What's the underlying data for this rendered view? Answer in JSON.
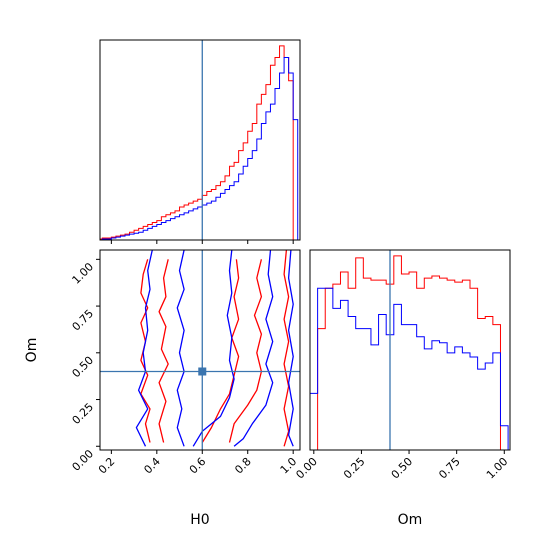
{
  "chart_data": [
    {
      "type": "histogram",
      "panel": "H0-marginal",
      "truth": 0.6,
      "xlim": [
        0.15,
        1.03
      ],
      "bin_edges": [
        0.04,
        0.06,
        0.08,
        0.1,
        0.12,
        0.14,
        0.16,
        0.18,
        0.2,
        0.22,
        0.24,
        0.26,
        0.28,
        0.3,
        0.32,
        0.34,
        0.36,
        0.38,
        0.4,
        0.42,
        0.44,
        0.46,
        0.48,
        0.5,
        0.52,
        0.54,
        0.56,
        0.58,
        0.6,
        0.62,
        0.64,
        0.66,
        0.68,
        0.7,
        0.72,
        0.74,
        0.76,
        0.78,
        0.8,
        0.82,
        0.84,
        0.86,
        0.88,
        0.9,
        0.92,
        0.94,
        0.96,
        0.98,
        1.0,
        1.02
      ],
      "series": [
        {
          "color": "#ff0000",
          "values": [
            0,
            0,
            0,
            0,
            0,
            0.5,
            1,
            1,
            1.5,
            2,
            2.5,
            3,
            4,
            5,
            6,
            7,
            8,
            9,
            10,
            12,
            13,
            14,
            15,
            17,
            18,
            19,
            20,
            21,
            23,
            25,
            26,
            28,
            30,
            33,
            38,
            40,
            46,
            50,
            56,
            60,
            70,
            75,
            80,
            90,
            94,
            100,
            94,
            82,
            0
          ]
        },
        {
          "color": "#0000ff",
          "values": [
            0,
            0,
            0,
            0,
            0,
            0,
            0.5,
            0.5,
            1,
            1.5,
            2,
            2.5,
            3,
            3.5,
            4,
            5,
            6,
            7,
            8,
            9,
            10,
            11,
            12,
            13,
            14,
            15,
            16,
            17,
            18,
            19,
            20,
            22,
            24,
            26,
            28,
            30,
            34,
            38,
            42,
            46,
            52,
            60,
            66,
            70,
            78,
            86,
            94,
            86,
            62
          ]
        }
      ]
    },
    {
      "type": "contour",
      "panel": "H0-Om-joint",
      "xlabel": "H0",
      "ylabel": "Om",
      "xlim": [
        0.15,
        1.03
      ],
      "ylim": [
        -0.02,
        1.05
      ],
      "xticks": [
        "0.2",
        "0.4",
        "0.6",
        "0.8",
        "1.0"
      ],
      "yticks": [
        "0.00",
        "0.25",
        "0.50",
        "0.75",
        "1.00"
      ],
      "truth": [
        0.6,
        0.4
      ],
      "series": [
        {
          "color": "#ff0000",
          "contours": [
            [
              [
                0.36,
                1.0
              ],
              [
                0.34,
                0.92
              ],
              [
                0.33,
                0.82
              ],
              [
                0.36,
                0.74
              ],
              [
                0.33,
                0.66
              ],
              [
                0.35,
                0.56
              ],
              [
                0.33,
                0.46
              ],
              [
                0.36,
                0.38
              ],
              [
                0.33,
                0.28
              ],
              [
                0.37,
                0.2
              ],
              [
                0.35,
                0.12
              ],
              [
                0.37,
                0.02
              ]
            ],
            [
              [
                0.45,
                1.0
              ],
              [
                0.43,
                0.9
              ],
              [
                0.44,
                0.8
              ],
              [
                0.41,
                0.72
              ],
              [
                0.44,
                0.64
              ],
              [
                0.42,
                0.52
              ],
              [
                0.45,
                0.44
              ],
              [
                0.41,
                0.34
              ],
              [
                0.44,
                0.24
              ],
              [
                0.41,
                0.12
              ],
              [
                0.43,
                0.02
              ]
            ],
            [
              [
                0.75,
                1.0
              ],
              [
                0.76,
                0.9
              ],
              [
                0.74,
                0.8
              ],
              [
                0.76,
                0.68
              ],
              [
                0.73,
                0.58
              ],
              [
                0.76,
                0.48
              ],
              [
                0.74,
                0.38
              ],
              [
                0.72,
                0.28
              ],
              [
                0.68,
                0.2
              ],
              [
                0.64,
                0.1
              ],
              [
                0.6,
                0.02
              ]
            ],
            [
              [
                0.86,
                1.0
              ],
              [
                0.84,
                0.9
              ],
              [
                0.86,
                0.8
              ],
              [
                0.83,
                0.7
              ],
              [
                0.86,
                0.6
              ],
              [
                0.84,
                0.5
              ],
              [
                0.86,
                0.4
              ],
              [
                0.84,
                0.3
              ],
              [
                0.8,
                0.22
              ],
              [
                0.74,
                0.12
              ],
              [
                0.72,
                0.02
              ]
            ],
            [
              [
                0.97,
                1.05
              ],
              [
                0.96,
                0.92
              ],
              [
                0.98,
                0.8
              ],
              [
                0.96,
                0.68
              ],
              [
                0.98,
                0.56
              ],
              [
                0.96,
                0.44
              ],
              [
                0.98,
                0.32
              ],
              [
                0.96,
                0.2
              ],
              [
                0.98,
                0.08
              ],
              [
                0.96,
                0.0
              ]
            ]
          ]
        },
        {
          "color": "#0000ff",
          "contours": [
            [
              [
                0.38,
                1.05
              ],
              [
                0.36,
                0.94
              ],
              [
                0.37,
                0.84
              ],
              [
                0.35,
                0.74
              ],
              [
                0.36,
                0.62
              ],
              [
                0.34,
                0.5
              ],
              [
                0.35,
                0.4
              ],
              [
                0.32,
                0.3
              ],
              [
                0.36,
                0.2
              ],
              [
                0.31,
                0.1
              ],
              [
                0.35,
                0.0
              ]
            ],
            [
              [
                0.52,
                1.05
              ],
              [
                0.5,
                0.94
              ],
              [
                0.52,
                0.84
              ],
              [
                0.49,
                0.74
              ],
              [
                0.52,
                0.62
              ],
              [
                0.5,
                0.5
              ],
              [
                0.52,
                0.4
              ],
              [
                0.49,
                0.3
              ],
              [
                0.51,
                0.2
              ],
              [
                0.49,
                0.1
              ],
              [
                0.52,
                0.0
              ]
            ],
            [
              [
                0.73,
                1.05
              ],
              [
                0.72,
                0.94
              ],
              [
                0.73,
                0.82
              ],
              [
                0.71,
                0.7
              ],
              [
                0.73,
                0.58
              ],
              [
                0.72,
                0.46
              ],
              [
                0.74,
                0.36
              ],
              [
                0.72,
                0.26
              ],
              [
                0.68,
                0.16
              ],
              [
                0.6,
                0.08
              ],
              [
                0.56,
                0.0
              ]
            ],
            [
              [
                0.9,
                1.05
              ],
              [
                0.89,
                0.92
              ],
              [
                0.91,
                0.8
              ],
              [
                0.88,
                0.68
              ],
              [
                0.91,
                0.56
              ],
              [
                0.88,
                0.44
              ],
              [
                0.91,
                0.34
              ],
              [
                0.88,
                0.22
              ],
              [
                0.82,
                0.12
              ],
              [
                0.78,
                0.04
              ],
              [
                0.74,
                0.0
              ]
            ],
            [
              [
                0.99,
                1.05
              ],
              [
                0.98,
                0.9
              ],
              [
                1.0,
                0.76
              ],
              [
                0.98,
                0.62
              ],
              [
                1.0,
                0.48
              ],
              [
                0.98,
                0.34
              ],
              [
                1.0,
                0.2
              ],
              [
                0.98,
                0.06
              ],
              [
                1.0,
                0.0
              ]
            ]
          ]
        }
      ]
    },
    {
      "type": "histogram",
      "panel": "Om-marginal",
      "xlabel": "Om",
      "xlim": [
        -0.02,
        1.03
      ],
      "xticks": [
        "0.00",
        "0.25",
        "0.50",
        "0.75",
        "1.00"
      ],
      "truth": 0.4,
      "bin_edges": [
        -0.02,
        0.02,
        0.06,
        0.1,
        0.14,
        0.18,
        0.22,
        0.26,
        0.3,
        0.34,
        0.38,
        0.42,
        0.46,
        0.5,
        0.54,
        0.58,
        0.62,
        0.66,
        0.7,
        0.74,
        0.78,
        0.82,
        0.86,
        0.9,
        0.94,
        0.98,
        1.02
      ],
      "series": [
        {
          "color": "#ff0000",
          "values": [
            0,
            60,
            80,
            82,
            88,
            80,
            95,
            85,
            84,
            84,
            82,
            96,
            87,
            88,
            80,
            85,
            86,
            85,
            84,
            83,
            84,
            80,
            65,
            66,
            62,
            0
          ]
        },
        {
          "color": "#0000ff",
          "values": [
            28,
            80,
            80,
            70,
            74,
            66,
            60,
            60,
            52,
            67,
            57,
            72,
            62,
            62,
            56,
            50,
            54,
            53,
            48,
            51,
            48,
            46,
            40,
            43,
            48,
            12
          ]
        }
      ]
    }
  ]
}
